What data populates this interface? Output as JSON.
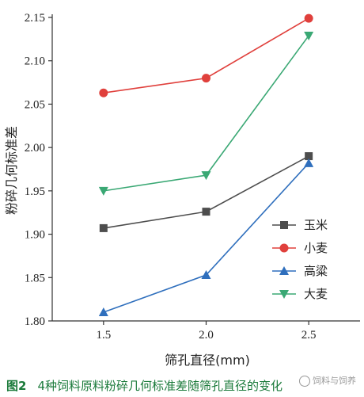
{
  "chart_data": {
    "type": "line",
    "x": [
      1.5,
      2.0,
      2.5
    ],
    "x_tick_labels": [
      "1.5",
      "2.0",
      "2.5"
    ],
    "xlabel": "筛孔直径(mm)",
    "ylabel": "粉碎几何标准差",
    "ylim": [
      1.8,
      2.15
    ],
    "y_ticks": [
      "1.80",
      "1.85",
      "1.90",
      "1.95",
      "2.00",
      "2.05",
      "2.10",
      "2.15"
    ],
    "grid": false,
    "legend_position": "right",
    "series": [
      {
        "name": "玉米",
        "values": [
          1.907,
          1.926,
          1.99
        ],
        "color": "#4d4d4d",
        "marker": "square"
      },
      {
        "name": "小麦",
        "values": [
          2.063,
          2.08,
          2.149
        ],
        "color": "#e0403c",
        "marker": "circle"
      },
      {
        "name": "高粱",
        "values": [
          1.81,
          1.853,
          1.982
        ],
        "color": "#2f6fbd",
        "marker": "triangle-up"
      },
      {
        "name": "大麦",
        "values": [
          1.95,
          1.968,
          2.129
        ],
        "color": "#3aa874",
        "marker": "triangle-down"
      }
    ]
  },
  "caption": {
    "label": "图2",
    "text": "4种饲料原料粉碎几何标准差随筛孔直径的变化"
  },
  "watermark": "饲料与饲养"
}
